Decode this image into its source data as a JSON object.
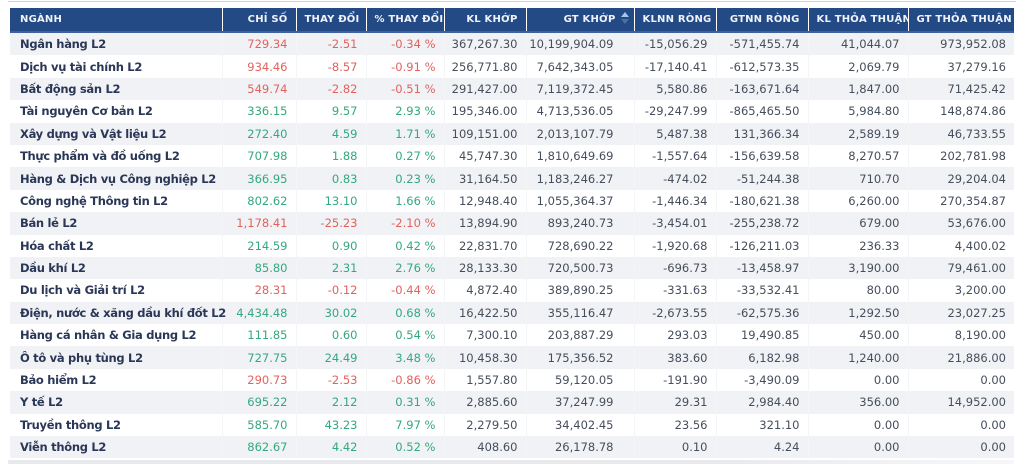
{
  "colors": {
    "header_bg": "#234a84",
    "header_text": "#eef3fb",
    "positive": "#34a87e",
    "negative": "#e2625e",
    "neutral_number": "#454e5c",
    "sector_name": "#2a3756",
    "zebra_row": "#f1f2f5"
  },
  "icons": {
    "sort_ascending_icon": "triangle-up-over-triangle-down"
  },
  "table": {
    "columns": [
      {
        "id": "nganh",
        "label": "NGÀNH",
        "signed": false,
        "sorted": false
      },
      {
        "id": "chi-so",
        "label": "CHỈ SỐ",
        "signed": true,
        "sorted": false
      },
      {
        "id": "thay-doi",
        "label": "THAY ĐỔI",
        "signed": true,
        "sorted": false
      },
      {
        "id": "pct-thay-doi",
        "label": "% THAY ĐỔI",
        "signed": true,
        "sorted": false
      },
      {
        "id": "kl-khop",
        "label": "KL KHỚP",
        "signed": false,
        "sorted": false
      },
      {
        "id": "gt-khop",
        "label": "GT KHỚP",
        "signed": false,
        "sorted": true
      },
      {
        "id": "klnn-rong",
        "label": "KLNN RÒNG",
        "signed": false,
        "sorted": false
      },
      {
        "id": "gtnn-rong",
        "label": "GTNN RÒNG",
        "signed": false,
        "sorted": false
      },
      {
        "id": "kl-thoa-thuan",
        "label": "KL THỎA THUẬN",
        "signed": false,
        "sorted": false
      },
      {
        "id": "gt-thoa-thuan",
        "label": "GT THỎA THUẬN",
        "signed": false,
        "sorted": false
      }
    ],
    "rows": [
      {
        "trend": "down",
        "cells": [
          "Ngân hàng L2",
          "729.34",
          "-2.51",
          "-0.34 %",
          "367,267.30",
          "10,199,904.09",
          "-15,056.29",
          "-571,455.74",
          "41,044.07",
          "973,952.08"
        ]
      },
      {
        "trend": "down",
        "cells": [
          "Dịch vụ tài chính L2",
          "934.46",
          "-8.57",
          "-0.91 %",
          "256,771.80",
          "7,642,343.05",
          "-17,140.41",
          "-612,573.35",
          "2,069.79",
          "37,279.16"
        ]
      },
      {
        "trend": "down",
        "cells": [
          "Bất động sản L2",
          "549.74",
          "-2.82",
          "-0.51 %",
          "291,427.00",
          "7,119,372.45",
          "5,580.86",
          "-163,671.64",
          "1,847.00",
          "71,425.42"
        ]
      },
      {
        "trend": "up",
        "cells": [
          "Tài nguyên Cơ bản L2",
          "336.15",
          "9.57",
          "2.93 %",
          "195,346.00",
          "4,713,536.05",
          "-29,247.99",
          "-865,465.50",
          "5,984.80",
          "148,874.86"
        ]
      },
      {
        "trend": "up",
        "cells": [
          "Xây dựng và Vật liệu L2",
          "272.40",
          "4.59",
          "1.71 %",
          "109,151.00",
          "2,013,107.79",
          "5,487.38",
          "131,366.34",
          "2,589.19",
          "46,733.55"
        ]
      },
      {
        "trend": "up",
        "cells": [
          "Thực phẩm và đồ uống L2",
          "707.98",
          "1.88",
          "0.27 %",
          "45,747.30",
          "1,810,649.69",
          "-1,557.64",
          "-156,639.58",
          "8,270.57",
          "202,781.98"
        ]
      },
      {
        "trend": "up",
        "cells": [
          "Hàng & Dịch vụ Công nghiệp L2",
          "366.95",
          "0.83",
          "0.23 %",
          "31,164.50",
          "1,183,246.27",
          "-474.02",
          "-51,244.38",
          "710.70",
          "29,204.04"
        ]
      },
      {
        "trend": "up",
        "cells": [
          "Công nghệ Thông tin L2",
          "802.62",
          "13.10",
          "1.66 %",
          "12,948.40",
          "1,055,364.37",
          "-1,446.34",
          "-180,621.38",
          "6,260.00",
          "270,354.87"
        ]
      },
      {
        "trend": "down",
        "cells": [
          "Bán lẻ L2",
          "1,178.41",
          "-25.23",
          "-2.10 %",
          "13,894.90",
          "893,240.73",
          "-3,454.01",
          "-255,238.72",
          "679.00",
          "53,676.00"
        ]
      },
      {
        "trend": "up",
        "cells": [
          "Hóa chất L2",
          "214.59",
          "0.90",
          "0.42 %",
          "22,831.70",
          "728,690.22",
          "-1,920.68",
          "-126,211.03",
          "236.33",
          "4,400.02"
        ]
      },
      {
        "trend": "up",
        "cells": [
          "Dầu khí L2",
          "85.80",
          "2.31",
          "2.76 %",
          "28,133.30",
          "720,500.73",
          "-696.73",
          "-13,458.97",
          "3,190.00",
          "79,461.00"
        ]
      },
      {
        "trend": "down",
        "cells": [
          "Du lịch và Giải trí L2",
          "28.31",
          "-0.12",
          "-0.44 %",
          "4,872.40",
          "389,890.25",
          "-331.63",
          "-33,532.41",
          "80.00",
          "3,200.00"
        ]
      },
      {
        "trend": "up",
        "cells": [
          "Điện, nước & xăng dầu khí đốt L2",
          "4,434.48",
          "30.02",
          "0.68 %",
          "16,422.50",
          "355,116.47",
          "-2,673.55",
          "-62,575.36",
          "1,292.50",
          "23,027.25"
        ]
      },
      {
        "trend": "up",
        "cells": [
          "Hàng cá nhân & Gia dụng L2",
          "111.85",
          "0.60",
          "0.54 %",
          "7,300.10",
          "203,887.29",
          "293.03",
          "19,490.85",
          "450.00",
          "8,190.00"
        ]
      },
      {
        "trend": "up",
        "cells": [
          "Ô tô và phụ tùng L2",
          "727.75",
          "24.49",
          "3.48 %",
          "10,458.30",
          "175,356.52",
          "383.60",
          "6,182.98",
          "1,240.00",
          "21,886.00"
        ]
      },
      {
        "trend": "down",
        "cells": [
          "Bảo hiểm L2",
          "290.73",
          "-2.53",
          "-0.86 %",
          "1,557.80",
          "59,120.05",
          "-191.90",
          "-3,490.09",
          "0.00",
          "0.00"
        ]
      },
      {
        "trend": "up",
        "cells": [
          "Y tế L2",
          "695.22",
          "2.12",
          "0.31 %",
          "2,885.60",
          "37,247.99",
          "29.31",
          "2,984.40",
          "356.00",
          "14,952.00"
        ]
      },
      {
        "trend": "up",
        "cells": [
          "Truyền thông L2",
          "585.70",
          "43.23",
          "7.97 %",
          "2,279.50",
          "34,402.45",
          "23.56",
          "321.10",
          "0.00",
          "0.00"
        ]
      },
      {
        "trend": "up",
        "cells": [
          "Viễn thông L2",
          "862.67",
          "4.42",
          "0.52 %",
          "408.60",
          "26,178.78",
          "0.10",
          "4.24",
          "0.00",
          "0.00"
        ]
      }
    ]
  }
}
